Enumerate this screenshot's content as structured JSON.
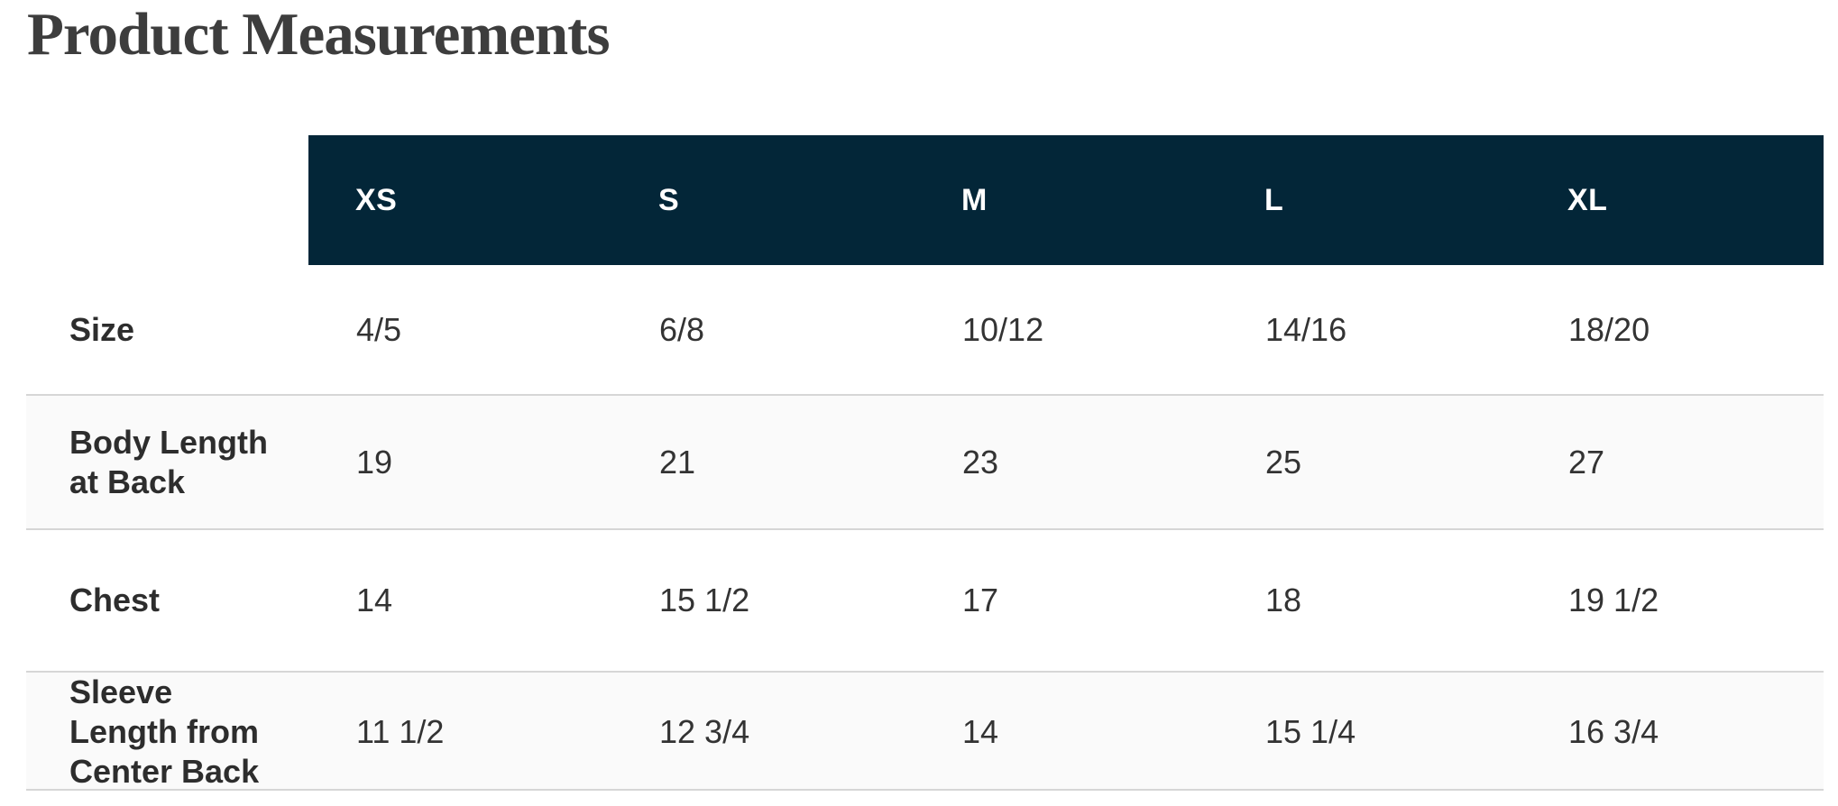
{
  "page": {
    "title": "Product Measurements"
  },
  "colors": {
    "header_bg": "#032638",
    "header_text": "#ffffff",
    "shaded_row_bg": "#fafafa",
    "row_border": "#d6d6d6",
    "body_text": "#333333",
    "title_text": "#3d3d3d"
  },
  "table": {
    "columns": [
      "XS",
      "S",
      "M",
      "L",
      "XL"
    ],
    "rows": [
      {
        "label": "Size",
        "values": [
          "4/5",
          "6/8",
          "10/12",
          "14/16",
          "18/20"
        ],
        "shaded": false
      },
      {
        "label": "Body Length at Back",
        "values": [
          "19",
          "21",
          "23",
          "25",
          "27"
        ],
        "shaded": true
      },
      {
        "label": "Chest",
        "values": [
          "14",
          "15 1/2",
          "17",
          "18",
          "19 1/2"
        ],
        "shaded": false
      },
      {
        "label": "Sleeve Length from Center Back",
        "values": [
          "11 1/2",
          "12 3/4",
          "14",
          "15 1/4",
          "16 3/4"
        ],
        "shaded": true
      }
    ]
  }
}
